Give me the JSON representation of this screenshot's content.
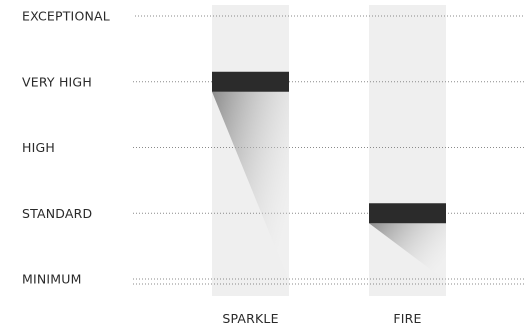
{
  "chart_data": {
    "type": "bar",
    "title": "",
    "xlabel": "",
    "ylabel": "",
    "y_levels": [
      "EXCEPTIONAL",
      "VERY HIGH",
      "HIGH",
      "STANDARD",
      "MINIMUM"
    ],
    "categories": [
      "SPARKLE",
      "FIRE"
    ],
    "values": [
      "VERY HIGH",
      "STANDARD"
    ],
    "grid": true,
    "colors": {
      "column_background": "#efefef",
      "marker": "#2b2b2b",
      "gridline": "#8a8a8a",
      "text": "#2a2a2a"
    }
  }
}
